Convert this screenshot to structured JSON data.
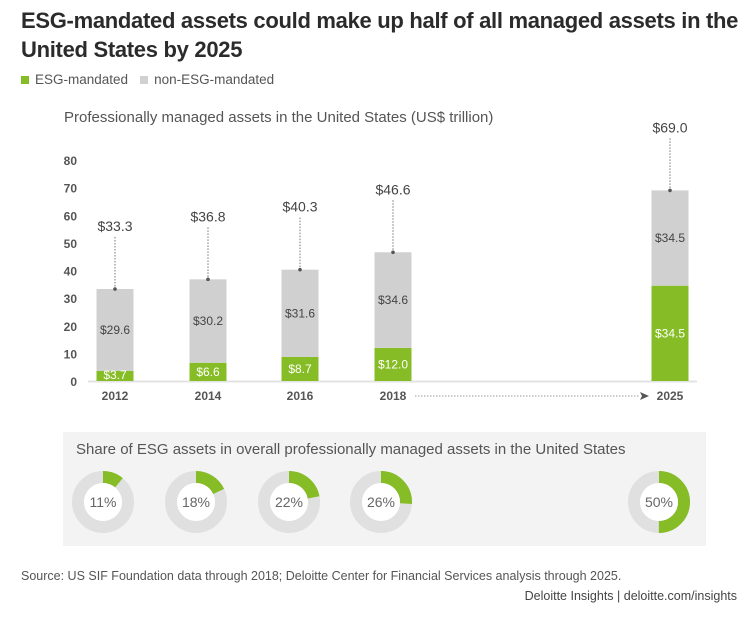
{
  "header": {
    "title": "ESG-mandated assets could make up half of all managed assets in the United States by 2025"
  },
  "colors": {
    "esg": "#86bc25",
    "non_esg": "#d0d0d0",
    "donut_track": "#e0e0e0",
    "panel_bg": "#f3f3f3",
    "axis_text": "#555555"
  },
  "legend": [
    {
      "label": "ESG-mandated",
      "color": "#86bc25"
    },
    {
      "label": "non-ESG-mandated",
      "color": "#d0d0d0"
    }
  ],
  "chart_data": [
    {
      "type": "bar",
      "stacked": true,
      "title": "Professionally managed assets in the United States (US$ trillion)",
      "categories": [
        "2012",
        "2014",
        "2016",
        "2018",
        "2025"
      ],
      "series": [
        {
          "name": "ESG-mandated",
          "values": [
            3.7,
            6.6,
            8.7,
            12.0,
            34.5
          ],
          "labels": [
            "$3.7",
            "$6.6",
            "$8.7",
            "$12.0",
            "$34.5"
          ]
        },
        {
          "name": "non-ESG-mandated",
          "values": [
            29.6,
            30.2,
            31.6,
            34.6,
            34.5
          ],
          "labels": [
            "$29.6",
            "$30.2",
            "$31.6",
            "$34.6",
            "$34.5"
          ]
        }
      ],
      "totals": [
        33.3,
        36.8,
        40.3,
        46.6,
        69.0
      ],
      "total_labels": [
        "$33.3",
        "$36.8",
        "$40.3",
        "$46.6",
        "$69.0"
      ],
      "yticks": [
        0,
        10,
        20,
        30,
        40,
        50,
        60,
        70,
        80
      ],
      "ylim": [
        0,
        80
      ],
      "xlabel": "",
      "ylabel": "",
      "grid": false,
      "annotation": "dotted arrow from 2018 to 2025"
    },
    {
      "type": "pie",
      "variant": "donut",
      "title": "Share of ESG assets in overall professionally managed assets in the United States",
      "categories": [
        "2012",
        "2014",
        "2016",
        "2018",
        "2025"
      ],
      "values": [
        11,
        18,
        22,
        26,
        50
      ],
      "labels": [
        "11%",
        "18%",
        "22%",
        "26%",
        "50%"
      ]
    }
  ],
  "footer": {
    "source": "Source: US SIF Foundation data through 2018; Deloitte Center for Financial Services analysis through 2025.",
    "credit": "Deloitte Insights | deloitte.com/insights"
  }
}
